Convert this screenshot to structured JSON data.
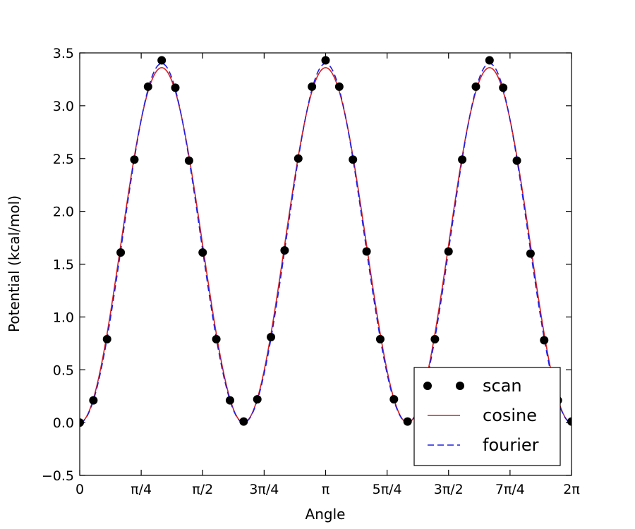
{
  "chart_data": {
    "type": "line",
    "title": "",
    "xlabel": "Angle",
    "ylabel": "Potential (kcal/mol)",
    "xlim": [
      0,
      6.283185
    ],
    "ylim": [
      -0.5,
      3.5
    ],
    "grid": false,
    "legend_position": "lower-right",
    "x_ticks": [
      {
        "value": 0,
        "label": "0"
      },
      {
        "value": 0.785398,
        "label": "π/4"
      },
      {
        "value": 1.570796,
        "label": "π/2"
      },
      {
        "value": 2.356194,
        "label": "3π/4"
      },
      {
        "value": 3.141593,
        "label": "π"
      },
      {
        "value": 3.926991,
        "label": "5π/4"
      },
      {
        "value": 4.712389,
        "label": "3π/2"
      },
      {
        "value": 5.497787,
        "label": "7π/4"
      },
      {
        "value": 6.283185,
        "label": "2π"
      }
    ],
    "y_ticks": [
      {
        "value": -0.5,
        "label": "−0.5"
      },
      {
        "value": 0.0,
        "label": "0.0"
      },
      {
        "value": 0.5,
        "label": "0.5"
      },
      {
        "value": 1.0,
        "label": "1.0"
      },
      {
        "value": 1.5,
        "label": "1.5"
      },
      {
        "value": 2.0,
        "label": "2.0"
      },
      {
        "value": 2.5,
        "label": "2.5"
      },
      {
        "value": 3.0,
        "label": "3.0"
      },
      {
        "value": 3.5,
        "label": "3.5"
      }
    ],
    "series": [
      {
        "name": "scan",
        "style": "markers",
        "color": "#000000",
        "x": [
          0.0,
          0.1745,
          0.3491,
          0.5236,
          0.6981,
          0.8727,
          1.0472,
          1.2217,
          1.3963,
          1.5708,
          1.7453,
          1.9199,
          2.0944,
          2.2689,
          2.4435,
          2.618,
          2.7925,
          2.9671,
          3.1416,
          3.3161,
          3.4907,
          3.6652,
          3.8397,
          4.0143,
          4.1888,
          4.3633,
          4.5379,
          4.7124,
          4.8869,
          5.0615,
          5.236,
          5.4105,
          5.5851,
          5.7596,
          5.9341,
          6.1087,
          6.2832
        ],
        "y": [
          0.0,
          0.21,
          0.79,
          1.61,
          2.49,
          3.18,
          3.43,
          3.17,
          2.48,
          1.61,
          0.79,
          0.21,
          0.01,
          0.22,
          0.81,
          1.63,
          2.5,
          3.18,
          3.43,
          3.18,
          2.49,
          1.62,
          0.79,
          0.22,
          0.01,
          0.22,
          0.79,
          1.62,
          2.49,
          3.18,
          3.43,
          3.17,
          2.48,
          1.6,
          0.78,
          0.21,
          0.01
        ]
      },
      {
        "name": "cosine",
        "style": "solid",
        "color": "#d62020",
        "function": "1.68*(1-cos(3x))",
        "amplitude": 1.68,
        "periodicity": 3
      },
      {
        "name": "fourier",
        "style": "dashed",
        "color": "#1f1fe0",
        "function": "1.70*(1-cos(3x)) - 0.035*(1-cos(6x))",
        "amplitude": 1.7,
        "amplitude_6": -0.035,
        "periodicity": 3
      }
    ]
  }
}
